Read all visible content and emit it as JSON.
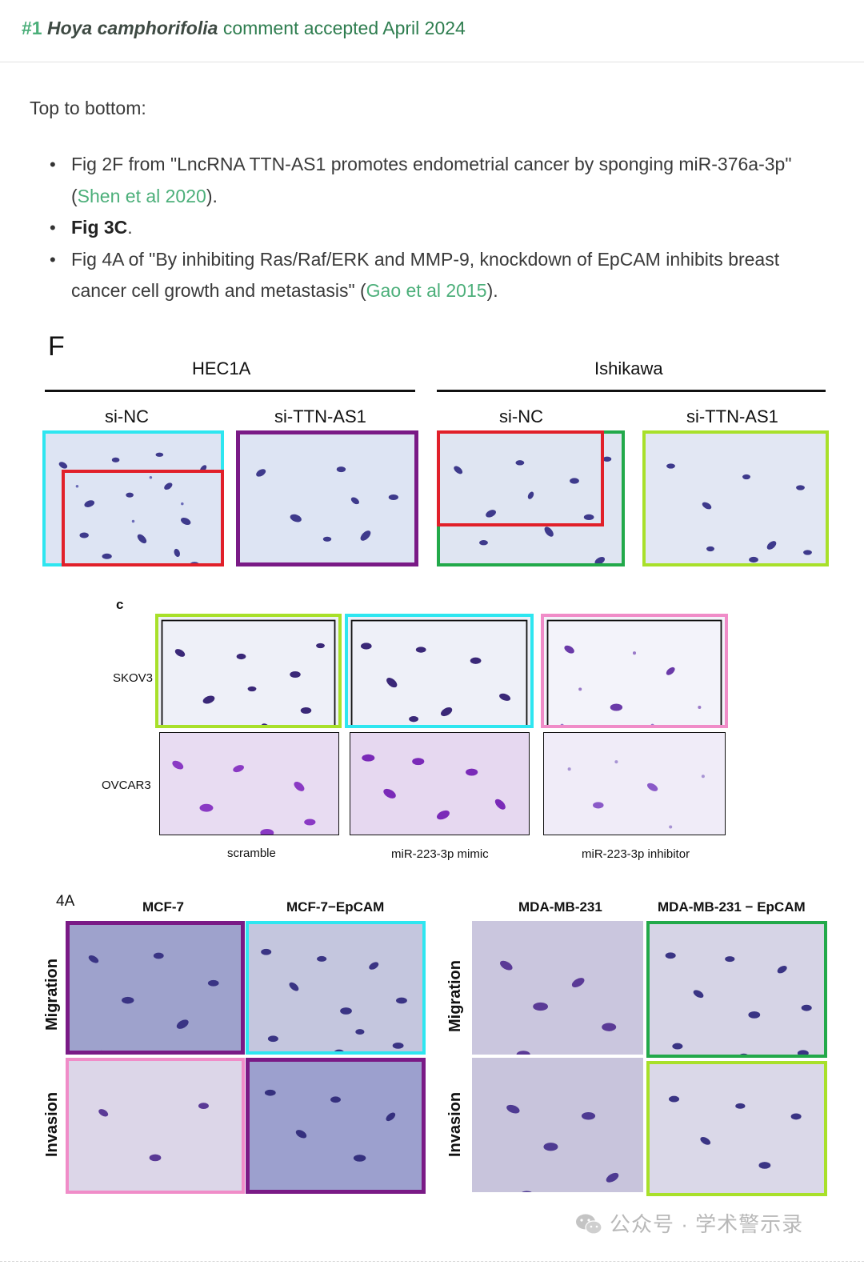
{
  "header": {
    "number": "#1",
    "species": "Hoya camphorifolia",
    "status": "comment accepted April 2024"
  },
  "intro": "Top to bottom:",
  "bullets": [
    {
      "pre": "Fig 2F from \"LncRNA TTN-AS1 promotes endometrial cancer by sponging miR-376a-3p\" (",
      "link": "Shen et al 2020",
      "post": ")."
    },
    {
      "bold": "Fig 3C",
      "post": "."
    },
    {
      "pre": "Fig 4A of \"By inhibiting Ras/Raf/ERK and MMP-9, knockdown of EpCAM inhibits breast cancer cell growth and metastasis\" (",
      "link": "Gao et al 2015",
      "post": ")."
    }
  ],
  "figure_f": {
    "label": "F",
    "group_left": "HEC1A",
    "group_right": "Ishikawa",
    "col_labels": [
      "si-NC",
      "si-TTN-AS1",
      "si-NC",
      "si-TTN-AS1"
    ]
  },
  "figure_c": {
    "label": "c",
    "rows": [
      "SKOV3",
      "OVCAR3"
    ],
    "cols": [
      "scramble",
      "miR-223-3p mimic",
      "miR-223-3p inhibitor"
    ]
  },
  "figure_4a": {
    "label": "4A",
    "cols": [
      "MCF-7",
      "MCF-7−EpCAM",
      "MDA-MB-231",
      "MDA-MB-231 − EpCAM"
    ],
    "rows": [
      "Migration",
      "Invasion"
    ]
  },
  "watermark": "公众号 · 学术警示录",
  "colors": {
    "cyan": "#2ee6f0",
    "purple": "#7a1a86",
    "red": "#e1202a",
    "green": "#22a94a",
    "lime": "#a8e02a",
    "pink": "#f08cc8",
    "link": "#4caf7a"
  }
}
